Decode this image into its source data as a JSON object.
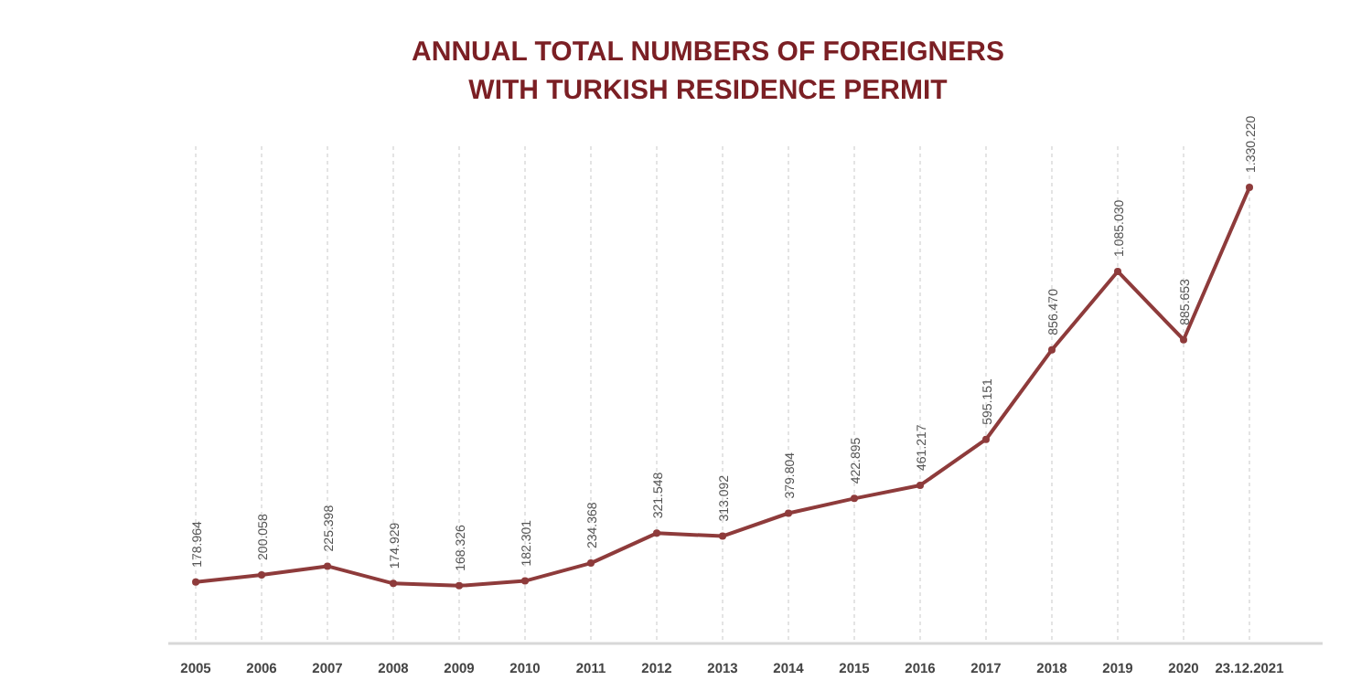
{
  "chart_data": {
    "type": "line",
    "title": "ANNUAL TOTAL NUMBERS OF FOREIGNERS\nWITH TURKISH RESIDENCE PERMIT",
    "categories": [
      "2005",
      "2006",
      "2007",
      "2008",
      "2009",
      "2010",
      "2011",
      "2012",
      "2013",
      "2014",
      "2015",
      "2016",
      "2017",
      "2018",
      "2019",
      "2020",
      "23.12.2021"
    ],
    "series": [
      {
        "color": "#8e3b3b",
        "values": [
          178964,
          200058,
          225398,
          174929,
          168326,
          182301,
          234368,
          321548,
          313092,
          379804,
          422895,
          461217,
          595151,
          856470,
          1085030,
          885653,
          1330220
        ],
        "value_labels": [
          "178.964",
          "200.058",
          "225.398",
          "174.929",
          "168.326",
          "182.301",
          "234.368",
          "321.548",
          "313.092",
          "379.804",
          "422.895",
          "461.217",
          "595.151",
          "856.470",
          "1.085.030",
          "885.653",
          "1.330.220"
        ]
      }
    ],
    "ylim": [
      0,
      1450000
    ],
    "grid": "x",
    "marker": "circle",
    "line_style": "solid"
  }
}
